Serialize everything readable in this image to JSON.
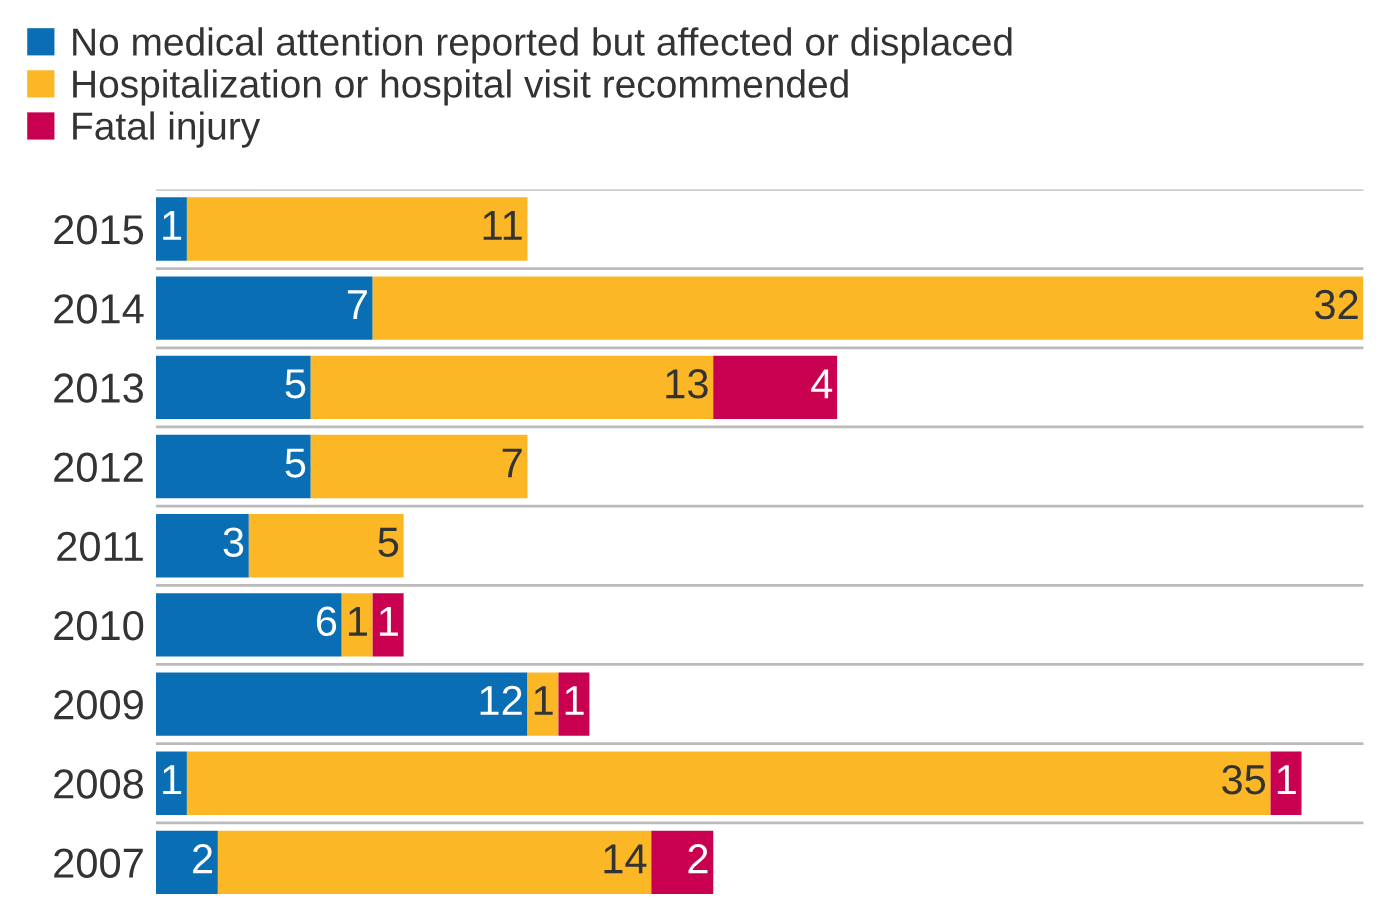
{
  "chart_data": {
    "type": "bar",
    "orientation": "horizontal",
    "stacked": true,
    "data_labels": true,
    "grid": "y",
    "legend": "top left",
    "categories": [
      "2015",
      "2014",
      "2013",
      "2012",
      "2011",
      "2010",
      "2009",
      "2008",
      "2007"
    ],
    "series": [
      {
        "name": "No medical attention reported but affected or displaced",
        "color": "#0a6eb4",
        "values": [
          1,
          7,
          5,
          5,
          3,
          6,
          12,
          1,
          2
        ]
      },
      {
        "name": "Hospitalization or hospital visit recommended",
        "color": "#fbb726",
        "values": [
          11,
          32,
          13,
          7,
          5,
          1,
          1,
          35,
          14
        ]
      },
      {
        "name": "Fatal injury",
        "color": "#c8004f",
        "values": [
          null,
          null,
          4,
          null,
          null,
          1,
          1,
          1,
          2
        ]
      }
    ]
  }
}
